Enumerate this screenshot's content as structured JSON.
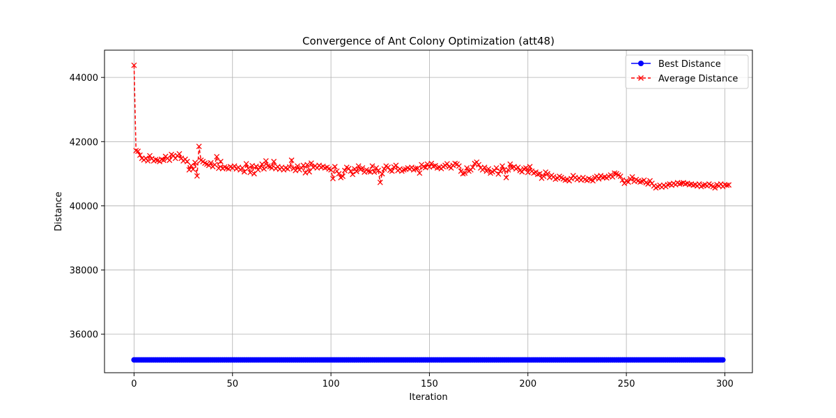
{
  "chart_data": {
    "type": "line",
    "title": "Convergence of Ant Colony Optimization (att48)",
    "xlabel": "Iteration",
    "ylabel": "Distance",
    "xlim": [
      -15,
      314
    ],
    "ylim": [
      34800,
      44850
    ],
    "xticks": [
      0,
      50,
      100,
      150,
      200,
      250,
      300
    ],
    "yticks": [
      36000,
      38000,
      40000,
      42000,
      44000
    ],
    "grid": true,
    "legend_position": "top-right",
    "series": [
      {
        "name": "Best Distance",
        "color": "#0000ff",
        "marker": "circle",
        "line_style": "solid",
        "constant_value": 35200,
        "count": 300
      },
      {
        "name": "Average Distance",
        "color": "#ff0000",
        "marker": "x",
        "line_style": "dashed",
        "values": [
          44380,
          41720,
          41700,
          41580,
          41480,
          41430,
          41480,
          41400,
          41560,
          41470,
          41400,
          41440,
          41420,
          41380,
          41450,
          41420,
          41540,
          41480,
          41420,
          41600,
          41560,
          41480,
          41560,
          41620,
          41480,
          41400,
          41450,
          41380,
          41120,
          41250,
          41140,
          41350,
          40930,
          41850,
          41420,
          41380,
          41330,
          41300,
          41260,
          41340,
          41220,
          41280,
          41530,
          41170,
          41380,
          41160,
          41210,
          41180,
          41150,
          41220,
          41180,
          41240,
          41150,
          41200,
          41120,
          41180,
          41060,
          41310,
          41170,
          41040,
          41250,
          41000,
          41230,
          41120,
          41190,
          41300,
          41150,
          41400,
          41240,
          41220,
          41180,
          41380,
          41160,
          41220,
          41140,
          41200,
          41120,
          41180,
          41150,
          41210,
          41420,
          41160,
          41100,
          41240,
          41120,
          41180,
          41260,
          41030,
          41280,
          41060,
          41330,
          41200,
          41240,
          41180,
          41260,
          41200,
          41230,
          41180,
          41200,
          41150,
          41120,
          40850,
          41220,
          41080,
          41000,
          40880,
          40920,
          41100,
          41200,
          41160,
          41080,
          40980,
          41150,
          41070,
          41240,
          41130,
          41180,
          41050,
          41120,
          41080,
          41060,
          41240,
          41050,
          41180,
          41100,
          40730,
          41000,
          41150,
          41240,
          41200,
          41110,
          41080,
          41210,
          41260,
          41100,
          41150,
          41080,
          41120,
          41140,
          41180,
          41150,
          41200,
          41120,
          41160,
          41170,
          41020,
          41280,
          41220,
          41190,
          41300,
          41210,
          41320,
          41230,
          41250,
          41180,
          41200,
          41160,
          41220,
          41260,
          41310,
          41220,
          41180,
          41260,
          41320,
          41300,
          41240,
          41080,
          41000,
          41020,
          41180,
          41080,
          41120,
          41200,
          41320,
          41360,
          41280,
          41180,
          41120,
          41200,
          41080,
          41150,
          41020,
          41060,
          41100,
          41180,
          40990,
          41080,
          41240,
          41120,
          40880,
          41120,
          41300,
          41180,
          41220,
          41150,
          41200,
          41100,
          41060,
          41150,
          41180,
          41040,
          41220,
          41080,
          41020,
          41050,
          40980,
          41000,
          40860,
          40920,
          41050,
          41000,
          40880,
          40950,
          40900,
          40830,
          40860,
          40920,
          40880,
          40840,
          40800,
          40820,
          40780,
          40850,
          40940,
          40880,
          40820,
          40860,
          40800,
          40880,
          40820,
          40790,
          40850,
          40820,
          40780,
          40880,
          40920,
          40840,
          40940,
          40880,
          40900,
          40870,
          40920,
          40960,
          40900,
          41020,
          41000,
          40960,
          40920,
          40800,
          40700,
          40780,
          40740,
          40840,
          40900,
          40760,
          40820,
          40780,
          40740,
          40760,
          40800,
          40720,
          40680,
          40780,
          40700,
          40620,
          40560,
          40600,
          40640,
          40580,
          40640,
          40600,
          40660,
          40680,
          40640,
          40700,
          40660,
          40720,
          40680,
          40700,
          40720,
          40680,
          40700,
          40660,
          40680,
          40640,
          40660,
          40620,
          40680,
          40600,
          40640,
          40660,
          40620,
          40680,
          40640,
          40600,
          40560,
          40660,
          40620,
          40680,
          40600,
          40660,
          40640,
          40650
        ]
      }
    ]
  }
}
